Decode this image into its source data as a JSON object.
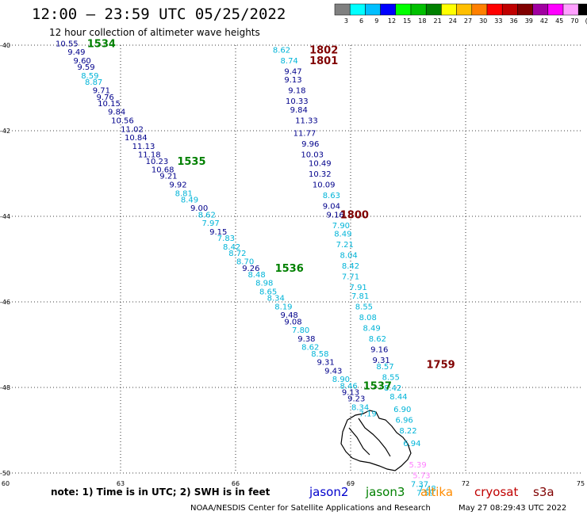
{
  "header": {
    "title": "12:00 – 23:59 UTC 05/25/2022",
    "subtitle": "12 hour collection of altimeter wave heights"
  },
  "colorbar": {
    "labels": [
      "3",
      "6",
      "9",
      "12",
      "15",
      "18",
      "21",
      "24",
      "27",
      "30",
      "33",
      "36",
      "39",
      "42",
      "45",
      "70",
      "(ft)"
    ],
    "colors": [
      "#808080",
      "#00ffff",
      "#00bfff",
      "#0000ff",
      "#00ff00",
      "#00c000",
      "#008000",
      "#ffff00",
      "#ffbf00",
      "#ff8000",
      "#ff0000",
      "#c00000",
      "#800000",
      "#a000a0",
      "#ff00ff",
      "#ffa0ff",
      "#000000"
    ]
  },
  "colors": {
    "band_0_6": "#20b8d8",
    "band_6_9": "#00b4d8",
    "band_9_12": "#00008b",
    "band_12_plus": "#00008b",
    "land": "#ffffff",
    "jason2": "#0000cc",
    "jason3": "#008000",
    "altika": "#ff8c00",
    "cryosat": "#c00000",
    "s3a": "#800000"
  },
  "chart_data": {
    "type": "scatter",
    "x_axis": {
      "range": [
        60,
        75
      ],
      "ticks": [
        60,
        63,
        66,
        69,
        72,
        75
      ]
    },
    "y_axis": {
      "range": [
        -50,
        -40
      ],
      "ticks": [
        -40,
        -42,
        -44,
        -46,
        -48,
        -50
      ]
    },
    "grid": true,
    "series": [
      {
        "satellite": "jason3",
        "points": [
          {
            "x": 61.6,
            "y": -39.95,
            "v": "10.55"
          },
          {
            "x": 61.85,
            "y": -40.15,
            "v": "9.49"
          },
          {
            "x": 62.0,
            "y": -40.35,
            "v": "9.60"
          },
          {
            "x": 62.1,
            "y": -40.5,
            "v": "9.59"
          },
          {
            "x": 62.2,
            "y": -40.7,
            "v": "8.59"
          },
          {
            "x": 62.3,
            "y": -40.85,
            "v": "8.87"
          },
          {
            "x": 62.5,
            "y": -41.05,
            "v": "9.71"
          },
          {
            "x": 62.6,
            "y": -41.2,
            "v": "9.76"
          },
          {
            "x": 62.7,
            "y": -41.35,
            "v": "10.15"
          },
          {
            "x": 62.9,
            "y": -41.55,
            "v": "9.84"
          },
          {
            "x": 63.05,
            "y": -41.75,
            "v": "10.56"
          },
          {
            "x": 63.3,
            "y": -41.95,
            "v": "11.02"
          },
          {
            "x": 63.4,
            "y": -42.15,
            "v": "10.84"
          },
          {
            "x": 63.6,
            "y": -42.35,
            "v": "11.13"
          },
          {
            "x": 63.75,
            "y": -42.55,
            "v": "11.18"
          },
          {
            "x": 63.95,
            "y": -42.7,
            "v": "10.23"
          },
          {
            "x": 64.1,
            "y": -42.9,
            "v": "10.68"
          },
          {
            "x": 64.25,
            "y": -43.05,
            "v": "9.21"
          },
          {
            "x": 64.5,
            "y": -43.25,
            "v": "9.92"
          },
          {
            "x": 64.65,
            "y": -43.45,
            "v": "8.81"
          },
          {
            "x": 64.8,
            "y": -43.6,
            "v": "8.49"
          },
          {
            "x": 65.05,
            "y": -43.8,
            "v": "9.00"
          },
          {
            "x": 65.25,
            "y": -43.95,
            "v": "8.62"
          },
          {
            "x": 65.35,
            "y": -44.15,
            "v": "7.97"
          },
          {
            "x": 65.55,
            "y": -44.35,
            "v": "9.15"
          },
          {
            "x": 65.75,
            "y": -44.5,
            "v": "7.83"
          },
          {
            "x": 65.9,
            "y": -44.7,
            "v": "8.42"
          },
          {
            "x": 66.05,
            "y": -44.85,
            "v": "8.72"
          },
          {
            "x": 66.25,
            "y": -45.05,
            "v": "8.70"
          },
          {
            "x": 66.4,
            "y": -45.2,
            "v": "9.26"
          },
          {
            "x": 66.55,
            "y": -45.35,
            "v": "8.48"
          },
          {
            "x": 66.75,
            "y": -45.55,
            "v": "8.98"
          },
          {
            "x": 66.85,
            "y": -45.75,
            "v": "8.65"
          },
          {
            "x": 67.05,
            "y": -45.9,
            "v": "8.34"
          },
          {
            "x": 67.25,
            "y": -46.1,
            "v": "8.19"
          },
          {
            "x": 67.4,
            "y": -46.3,
            "v": "9.48"
          },
          {
            "x": 67.5,
            "y": -46.45,
            "v": "9.08"
          },
          {
            "x": 67.7,
            "y": -46.65,
            "v": "7.80"
          },
          {
            "x": 67.85,
            "y": -46.85,
            "v": "9.38"
          },
          {
            "x": 67.95,
            "y": -47.05,
            "v": "8.62"
          },
          {
            "x": 68.2,
            "y": -47.2,
            "v": "8.58"
          },
          {
            "x": 68.35,
            "y": -47.4,
            "v": "9.31"
          },
          {
            "x": 68.55,
            "y": -47.6,
            "v": "9.43"
          },
          {
            "x": 68.75,
            "y": -47.8,
            "v": "8.90"
          },
          {
            "x": 68.95,
            "y": -47.95,
            "v": "8.46"
          },
          {
            "x": 69.0,
            "y": -48.1,
            "v": "9.13"
          },
          {
            "x": 69.15,
            "y": -48.25,
            "v": "9.23"
          },
          {
            "x": 69.25,
            "y": -48.45,
            "v": "8.34"
          },
          {
            "x": 69.45,
            "y": -48.6,
            "v": "7.19"
          }
        ],
        "labels": [
          {
            "x": 62.5,
            "y": -39.95,
            "text": "1534"
          },
          {
            "x": 64.85,
            "y": -42.7,
            "text": "1535"
          },
          {
            "x": 67.4,
            "y": -45.2,
            "text": "1536"
          },
          {
            "x": 69.7,
            "y": -47.95,
            "text": "1537"
          }
        ]
      },
      {
        "satellite": "s3a",
        "points": [
          {
            "x": 67.2,
            "y": -40.1,
            "v": "8.62"
          },
          {
            "x": 67.4,
            "y": -40.35,
            "v": "8.74"
          },
          {
            "x": 67.5,
            "y": -40.6,
            "v": "9.47"
          },
          {
            "x": 67.5,
            "y": -40.8,
            "v": "9.13"
          },
          {
            "x": 67.6,
            "y": -41.05,
            "v": "9.18"
          },
          {
            "x": 67.6,
            "y": -41.3,
            "v": "10.33"
          },
          {
            "x": 67.65,
            "y": -41.5,
            "v": "9.84"
          },
          {
            "x": 67.85,
            "y": -41.75,
            "v": "11.33"
          },
          {
            "x": 67.8,
            "y": -42.05,
            "v": "11.77"
          },
          {
            "x": 67.95,
            "y": -42.3,
            "v": "9.96"
          },
          {
            "x": 68.0,
            "y": -42.55,
            "v": "10.03"
          },
          {
            "x": 68.2,
            "y": -42.75,
            "v": "10.49"
          },
          {
            "x": 68.2,
            "y": -43.0,
            "v": "10.32"
          },
          {
            "x": 68.3,
            "y": -43.25,
            "v": "10.09"
          },
          {
            "x": 68.5,
            "y": -43.5,
            "v": "8.63"
          },
          {
            "x": 68.5,
            "y": -43.75,
            "v": "9.04"
          },
          {
            "x": 68.6,
            "y": -43.95,
            "v": "9.16"
          },
          {
            "x": 68.75,
            "y": -44.2,
            "v": "7.90"
          },
          {
            "x": 68.8,
            "y": -44.4,
            "v": "8.49"
          },
          {
            "x": 68.85,
            "y": -44.65,
            "v": "7.21"
          },
          {
            "x": 68.95,
            "y": -44.9,
            "v": "8.04"
          },
          {
            "x": 69.0,
            "y": -45.15,
            "v": "8.42"
          },
          {
            "x": 69.0,
            "y": -45.4,
            "v": "7.71"
          },
          {
            "x": 69.2,
            "y": -45.65,
            "v": "7.91"
          },
          {
            "x": 69.25,
            "y": -45.85,
            "v": "7.81"
          },
          {
            "x": 69.35,
            "y": -46.1,
            "v": "8.55"
          },
          {
            "x": 69.45,
            "y": -46.35,
            "v": "8.08"
          },
          {
            "x": 69.55,
            "y": -46.6,
            "v": "8.49"
          },
          {
            "x": 69.7,
            "y": -46.85,
            "v": "8.62"
          },
          {
            "x": 69.75,
            "y": -47.1,
            "v": "9.16"
          },
          {
            "x": 69.8,
            "y": -47.35,
            "v": "9.31"
          },
          {
            "x": 69.9,
            "y": -47.5,
            "v": "8.57"
          },
          {
            "x": 70.05,
            "y": -47.75,
            "v": "8.55"
          },
          {
            "x": 70.1,
            "y": -48.0,
            "v": "8.42"
          },
          {
            "x": 70.25,
            "y": -48.2,
            "v": "8.44"
          },
          {
            "x": 70.35,
            "y": -48.5,
            "v": "6.90"
          },
          {
            "x": 70.4,
            "y": -48.75,
            "v": "6.96"
          },
          {
            "x": 70.5,
            "y": -49.0,
            "v": "8.22"
          },
          {
            "x": 70.6,
            "y": -49.3,
            "v": "6.94"
          },
          {
            "x": 70.75,
            "y": -49.8,
            "v": "5.39"
          },
          {
            "x": 70.85,
            "y": -50.05,
            "v": "5.73"
          },
          {
            "x": 70.8,
            "y": -50.25,
            "v": "7.37"
          },
          {
            "x": 71.0,
            "y": -50.35,
            "v": "7.48"
          },
          {
            "x": 70.95,
            "y": -50.45,
            "v": "7.59"
          }
        ],
        "labels": [
          {
            "x": 68.3,
            "y": -40.1,
            "text": "1802"
          },
          {
            "x": 68.3,
            "y": -40.35,
            "text": "1801"
          },
          {
            "x": 69.1,
            "y": -43.95,
            "text": "1800"
          },
          {
            "x": 71.35,
            "y": -47.45,
            "text": "1759"
          }
        ]
      }
    ]
  },
  "footer": {
    "note": "note: 1) Time is in UTC; 2) SWH is in feet",
    "legend": [
      {
        "key": "jason2",
        "label": "jason2"
      },
      {
        "key": "jason3",
        "label": "jason3"
      },
      {
        "key": "altika",
        "label": "altika"
      },
      {
        "key": "cryosat",
        "label": "cryosat"
      },
      {
        "key": "s3a",
        "label": "s3a"
      }
    ],
    "credit": "NOAA/NESDIS Center for Satellite Applications and Research",
    "timestamp": "May 27 08:29:43 UTC 2022"
  }
}
